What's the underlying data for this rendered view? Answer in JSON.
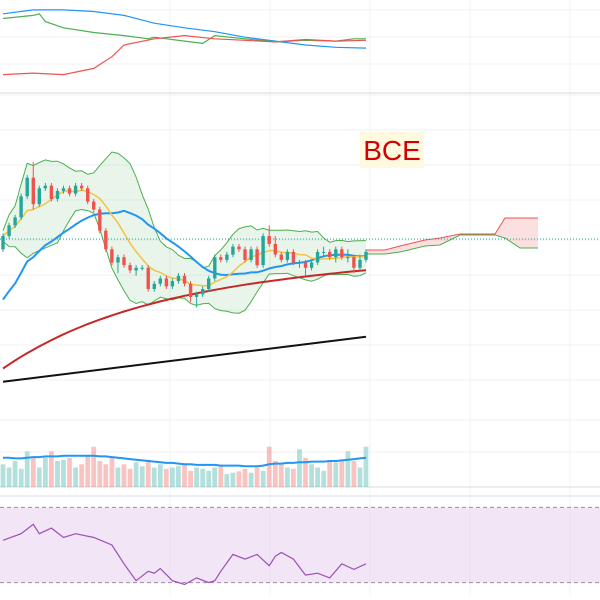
{
  "ticker": "BCE",
  "colors": {
    "up": "#26a69a",
    "down": "#ef5350",
    "sma_fast": "#f5c242",
    "sma_mid": "#2196f3",
    "sma_slow": "#c62828",
    "sma_long": "#111111",
    "bollinger": "#4caf50",
    "cloud_bull": "#4caf50",
    "cloud_bear": "#ef5350",
    "volume_ma": "#2196f3",
    "rsi_line": "#9c4fb6",
    "rsi_band": "#e7d3f0",
    "ticker_text": "#d50000",
    "ticker_bg": "#fff9e0"
  },
  "chart_data": [
    {
      "type": "line",
      "panel": "indicator",
      "ylim": [
        0,
        100
      ],
      "series": [
        {
          "color": "#2196f3",
          "x": [
            0,
            5,
            10,
            15,
            20,
            25,
            30,
            35,
            40,
            45,
            50,
            55,
            60
          ],
          "values": [
            90,
            95,
            95,
            93,
            88,
            78,
            72,
            67,
            60,
            55,
            50,
            47,
            46
          ]
        },
        {
          "color": "#4caf50",
          "x": [
            0,
            5,
            6,
            7,
            10,
            15,
            20,
            24,
            25,
            30,
            33,
            35,
            40,
            45,
            50,
            55,
            58,
            60
          ],
          "values": [
            84,
            88,
            90,
            80,
            72,
            66,
            62,
            58,
            60,
            55,
            52,
            62,
            58,
            54,
            56,
            55,
            58,
            58
          ]
        },
        {
          "color": "#ef5350",
          "x": [
            0,
            5,
            10,
            15,
            18,
            20,
            25,
            30,
            35,
            40,
            45,
            50,
            55,
            60
          ],
          "values": [
            12,
            14,
            12,
            20,
            35,
            50,
            58,
            62,
            58,
            56,
            54,
            57,
            55,
            56
          ]
        }
      ]
    },
    {
      "type": "candlestick",
      "panel": "price",
      "ylim": [
        0,
        100
      ],
      "x": [
        0,
        1,
        2,
        3,
        4,
        5,
        6,
        7,
        8,
        9,
        10,
        11,
        12,
        13,
        14,
        15,
        16,
        17,
        18,
        19,
        20,
        21,
        22,
        23,
        24,
        25,
        26,
        27,
        28,
        29,
        30,
        31,
        32,
        33,
        34,
        35,
        36,
        37,
        38,
        39,
        40,
        41,
        42,
        43,
        44,
        45,
        46,
        47,
        48,
        49,
        50,
        51,
        52,
        53,
        54,
        55,
        56,
        57,
        58,
        59,
        60
      ],
      "open": [
        55,
        60,
        64,
        67,
        75,
        82,
        72,
        78,
        79,
        74,
        77,
        78,
        76,
        79,
        78,
        73,
        70,
        62,
        55,
        50,
        52,
        49,
        47,
        48,
        48,
        40,
        42,
        44,
        41,
        43,
        45,
        42,
        37,
        38,
        40,
        44,
        52,
        51,
        53,
        56,
        55,
        51,
        55,
        49,
        60,
        57,
        53,
        51,
        54,
        50,
        50,
        48,
        50,
        54,
        54,
        52,
        55,
        52,
        52,
        48,
        51
      ],
      "close": [
        60,
        64,
        67,
        75,
        82,
        72,
        78,
        79,
        74,
        77,
        78,
        76,
        79,
        78,
        73,
        70,
        62,
        55,
        50,
        52,
        49,
        47,
        48,
        48,
        40,
        42,
        44,
        41,
        43,
        45,
        42,
        37,
        38,
        40,
        44,
        52,
        51,
        53,
        56,
        55,
        51,
        55,
        49,
        60,
        57,
        53,
        51,
        54,
        50,
        50,
        48,
        50,
        54,
        54,
        52,
        55,
        52,
        52,
        48,
        51,
        54
      ],
      "high": [
        61,
        65,
        68,
        76,
        83,
        88,
        79,
        80,
        80,
        78,
        79,
        79,
        80,
        80,
        79,
        74,
        71,
        63,
        56,
        53,
        53,
        50,
        49,
        49,
        49,
        43,
        45,
        45,
        44,
        46,
        46,
        43,
        39,
        41,
        45,
        53,
        53,
        54,
        57,
        57,
        56,
        56,
        56,
        61,
        64,
        60,
        54,
        55,
        55,
        51,
        51,
        51,
        55,
        56,
        55,
        56,
        56,
        55,
        53,
        53,
        55
      ],
      "low": [
        54,
        59,
        63,
        66,
        74,
        70,
        71,
        77,
        73,
        73,
        76,
        75,
        75,
        77,
        72,
        69,
        61,
        54,
        49,
        46,
        48,
        46,
        45,
        47,
        39,
        39,
        41,
        40,
        40,
        42,
        41,
        35,
        33,
        37,
        39,
        43,
        50,
        50,
        52,
        54,
        50,
        50,
        48,
        48,
        56,
        52,
        50,
        50,
        49,
        48,
        45,
        47,
        49,
        52,
        51,
        50,
        51,
        50,
        46,
        47,
        50
      ]
    },
    {
      "type": "bar",
      "panel": "volume",
      "ylim": [
        0,
        100
      ],
      "values": [
        35,
        30,
        40,
        28,
        55,
        45,
        30,
        45,
        55,
        40,
        42,
        45,
        30,
        35,
        48,
        62,
        40,
        35,
        45,
        30,
        35,
        28,
        38,
        32,
        42,
        30,
        35,
        28,
        30,
        32,
        36,
        25,
        30,
        28,
        25,
        30,
        32,
        20,
        22,
        24,
        28,
        22,
        30,
        25,
        62,
        40,
        35,
        30,
        28,
        58,
        45,
        35,
        30,
        25,
        40,
        38,
        42,
        55,
        40,
        30,
        62
      ],
      "ma": [
        45,
        45,
        44,
        44,
        45,
        46,
        46,
        47,
        47,
        47,
        48,
        48,
        48,
        48,
        48,
        48,
        47,
        47,
        46,
        45,
        44,
        43,
        42,
        41,
        40,
        39,
        38,
        37,
        37,
        36,
        35,
        35,
        34,
        34,
        34,
        34,
        33,
        33,
        33,
        33,
        32,
        32,
        32,
        33,
        35,
        36,
        36,
        37,
        37,
        38,
        38,
        39,
        39,
        39,
        40,
        40,
        41,
        42,
        43,
        44,
        45
      ]
    },
    {
      "type": "line",
      "panel": "rsi",
      "ylim": [
        0,
        100
      ],
      "overbought": 70,
      "oversold": 30,
      "x": [
        0,
        3,
        5,
        6,
        8,
        10,
        12,
        15,
        18,
        20,
        22,
        24,
        25,
        26,
        28,
        30,
        32,
        34,
        35,
        36,
        38,
        40,
        42,
        44,
        45,
        46,
        48,
        50,
        52,
        54,
        56,
        58,
        60
      ],
      "values": [
        55,
        62,
        72,
        62,
        68,
        58,
        62,
        58,
        50,
        30,
        12,
        22,
        20,
        25,
        12,
        8,
        15,
        10,
        12,
        22,
        40,
        35,
        40,
        28,
        38,
        42,
        35,
        18,
        20,
        15,
        30,
        24,
        30
      ]
    }
  ]
}
